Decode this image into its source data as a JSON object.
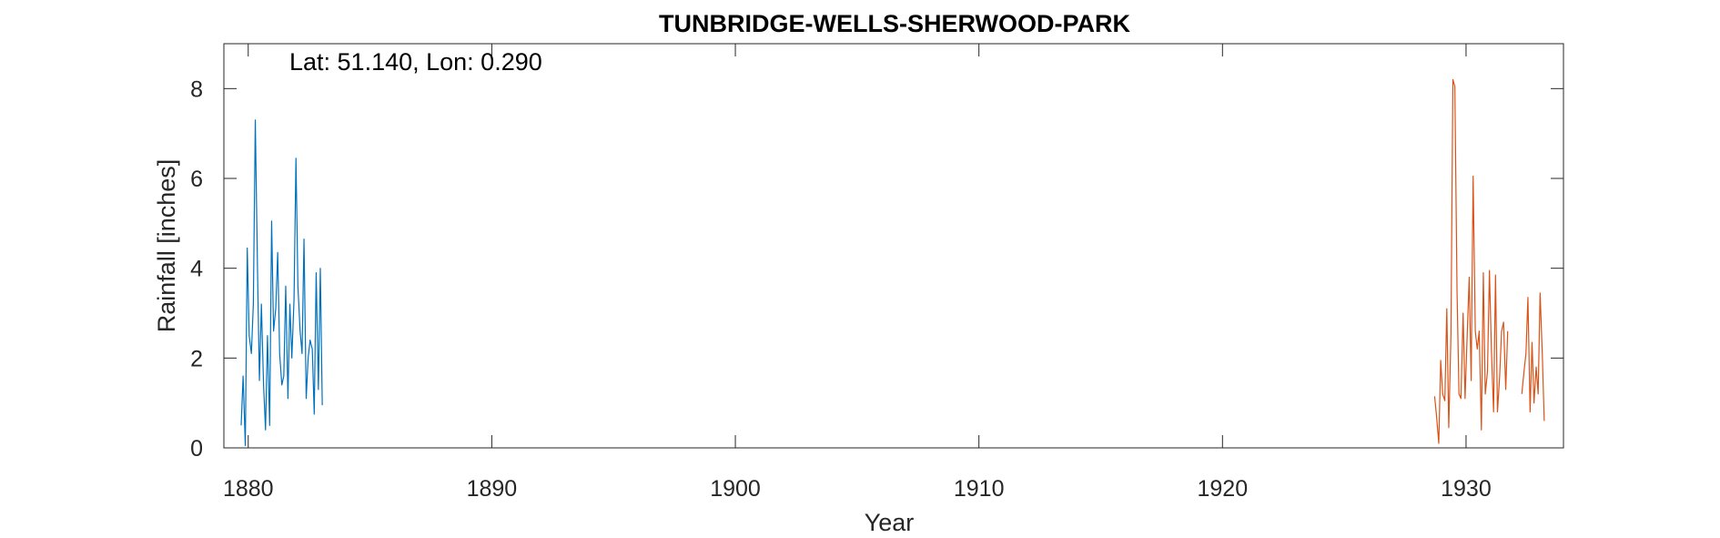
{
  "chart_data": {
    "type": "line",
    "title": "TUNBRIDGE-WELLS-SHERWOOD-PARK",
    "annotation": "Lat: 51.140, Lon: 0.290",
    "xlabel": "Year",
    "ylabel": "Rainfall [inches]",
    "xlim": [
      1879,
      1934
    ],
    "ylim": [
      0,
      9
    ],
    "xticks": [
      1880,
      1890,
      1900,
      1910,
      1920,
      1930
    ],
    "yticks": [
      0,
      2,
      4,
      6,
      8
    ],
    "grid": false,
    "series": [
      {
        "color": "#0072BD",
        "x": [
          1879.71,
          1879.79,
          1879.88,
          1879.96,
          1880.04,
          1880.13,
          1880.21,
          1880.29,
          1880.38,
          1880.46,
          1880.54,
          1880.63,
          1880.71,
          1880.79,
          1880.88,
          1880.96,
          1881.04,
          1881.13,
          1881.21,
          1881.29,
          1881.38,
          1881.46,
          1881.54,
          1881.63,
          1881.71,
          1881.79,
          1881.88,
          1881.96,
          1882.04,
          1882.13,
          1882.21,
          1882.29,
          1882.38,
          1882.46,
          1882.54,
          1882.63,
          1882.71,
          1882.79,
          1882.88,
          1882.96,
          1883.04,
          1883.13,
          1883.21,
          1883.29,
          1883.38,
          1883.46
        ],
        "y": [
          0.5,
          1.6,
          0.05,
          4.45,
          2.5,
          2.1,
          3.2,
          7.3,
          4.0,
          1.5,
          3.2,
          1.4,
          0.4,
          2.5,
          0.5,
          5.05,
          2.6,
          3.1,
          4.35,
          2.1,
          1.4,
          1.6,
          3.6,
          1.1,
          3.2,
          2.0,
          3.3,
          6.45,
          3.6,
          2.6,
          2.1,
          4.65,
          1.1,
          2.0,
          2.4,
          2.2,
          0.75,
          3.9,
          1.3,
          4.0,
          0.95,
          null,
          null,
          null,
          null,
          null
        ]
      },
      {
        "color": "#D95319",
        "x": [
          1928.71,
          1928.79,
          1928.88,
          1928.96,
          1929.04,
          1929.13,
          1929.21,
          1929.29,
          1929.38,
          1929.46,
          1929.54,
          1929.63,
          1929.71,
          1929.79,
          1929.88,
          1929.96,
          1930.04,
          1930.13,
          1930.21,
          1930.29,
          1930.38,
          1930.46,
          1930.54,
          1930.63,
          1930.71,
          1930.79,
          1930.88,
          1930.96,
          1931.04,
          1931.13,
          1931.21,
          1931.29,
          1931.38,
          1931.46,
          1931.54,
          1931.63,
          1931.71,
          1931.79,
          1931.88,
          1931.96,
          1932.04,
          1932.13,
          1932.21,
          1932.29,
          1932.38,
          1932.46,
          1932.54,
          1932.63,
          1932.71,
          1932.79,
          1932.88,
          1932.96,
          1933.04,
          1933.13,
          1933.21,
          1933.29,
          1933.38,
          1933.46
        ],
        "y": [
          1.15,
          0.7,
          0.1,
          1.95,
          1.2,
          1.05,
          3.1,
          0.45,
          2.5,
          8.2,
          8.05,
          3.5,
          1.2,
          1.1,
          3.0,
          1.1,
          2.4,
          3.8,
          1.5,
          6.05,
          2.6,
          2.2,
          2.6,
          0.4,
          3.9,
          1.2,
          1.7,
          3.95,
          2.2,
          0.8,
          3.85,
          0.8,
          1.6,
          2.6,
          2.8,
          1.3,
          2.6,
          null,
          null,
          null,
          null,
          null,
          null,
          1.2,
          1.7,
          2.1,
          3.35,
          0.8,
          2.35,
          1.0,
          1.8,
          1.2,
          3.45,
          2.1,
          0.6,
          null,
          null,
          null
        ]
      }
    ]
  }
}
